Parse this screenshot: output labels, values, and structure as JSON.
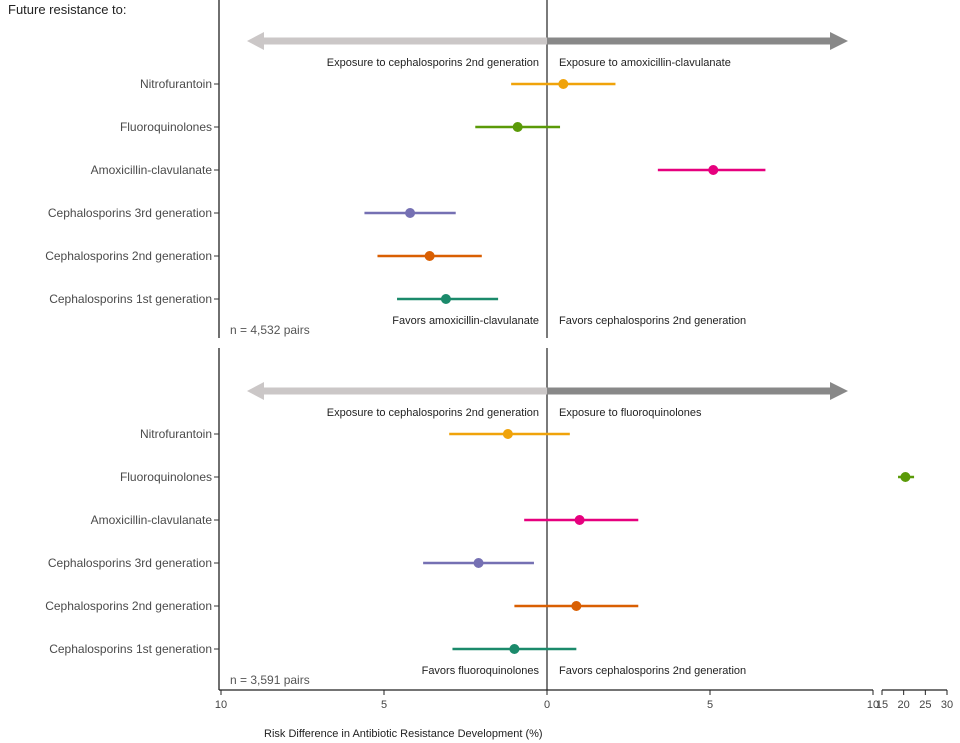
{
  "chart_data": {
    "type": "forest",
    "title": "Future resistance to:",
    "xlabel": "Risk Difference in Antibiotic Resistance Development (%)",
    "x_axis": {
      "main_range": [
        -10,
        10
      ],
      "main_ticks": [
        -10,
        -5,
        0,
        5,
        10
      ],
      "main_tick_labels": [
        "10",
        "5",
        "0",
        "5",
        "10"
      ],
      "break_range": [
        15,
        30
      ],
      "break_ticks": [
        15,
        20,
        25,
        30
      ],
      "break_tick_labels": [
        "15",
        "20",
        "25",
        "30"
      ]
    },
    "categories": [
      "Nitrofurantoin",
      "Fluoroquinolones",
      "Amoxicillin-clavulanate",
      "Cephalosporins 3rd generation",
      "Cephalosporins 2nd generation",
      "Cephalosporins 1st generation"
    ],
    "colors": [
      "#f0a30a",
      "#5a9a08",
      "#e6007e",
      "#7570b3",
      "#d95f02",
      "#1b8a6b"
    ],
    "panels": [
      {
        "n_label": "n = 4,532 pairs",
        "arrow_left_label": "Exposure to cephalosporins 2nd generation",
        "arrow_right_label": "Exposure to amoxicillin-clavulanate",
        "favors_left_label": "Favors amoxicillin-clavulanate",
        "favors_right_label": "Favors cephalosporins 2nd generation",
        "arrow_left_color": "#cbc7c7",
        "arrow_right_color": "#888888",
        "series": [
          {
            "category": "Nitrofurantoin",
            "estimate": 0.5,
            "lower": -1.1,
            "upper": 2.1
          },
          {
            "category": "Fluoroquinolones",
            "estimate": -0.9,
            "lower": -2.2,
            "upper": 0.4
          },
          {
            "category": "Amoxicillin-clavulanate",
            "estimate": 5.1,
            "lower": 3.4,
            "upper": 6.7
          },
          {
            "category": "Cephalosporins 3rd generation",
            "estimate": -4.2,
            "lower": -5.6,
            "upper": -2.8
          },
          {
            "category": "Cephalosporins 2nd generation",
            "estimate": -3.6,
            "lower": -5.2,
            "upper": -2.0
          },
          {
            "category": "Cephalosporins 1st generation",
            "estimate": -3.1,
            "lower": -4.6,
            "upper": -1.5
          }
        ]
      },
      {
        "n_label": "n = 3,591 pairs",
        "arrow_left_label": "Exposure to cephalosporins 2nd generation",
        "arrow_right_label": "Exposure to fluoroquinolones",
        "favors_left_label": "Favors fluoroquinolones",
        "favors_right_label": "Favors cephalosporins 2nd generation",
        "arrow_left_color": "#cbc7c7",
        "arrow_right_color": "#888888",
        "series": [
          {
            "category": "Nitrofurantoin",
            "estimate": -1.2,
            "lower": -3.0,
            "upper": 0.7
          },
          {
            "category": "Fluoroquinolones",
            "estimate": 20.4,
            "lower": 18.7,
            "upper": 22.4
          },
          {
            "category": "Amoxicillin-clavulanate",
            "estimate": 1.0,
            "lower": -0.7,
            "upper": 2.8
          },
          {
            "category": "Cephalosporins 3rd generation",
            "estimate": -2.1,
            "lower": -3.8,
            "upper": -0.4
          },
          {
            "category": "Cephalosporins 2nd generation",
            "estimate": 0.9,
            "lower": -1.0,
            "upper": 2.8
          },
          {
            "category": "Cephalosporins 1st generation",
            "estimate": -1.0,
            "lower": -2.9,
            "upper": 0.9
          }
        ]
      }
    ]
  }
}
